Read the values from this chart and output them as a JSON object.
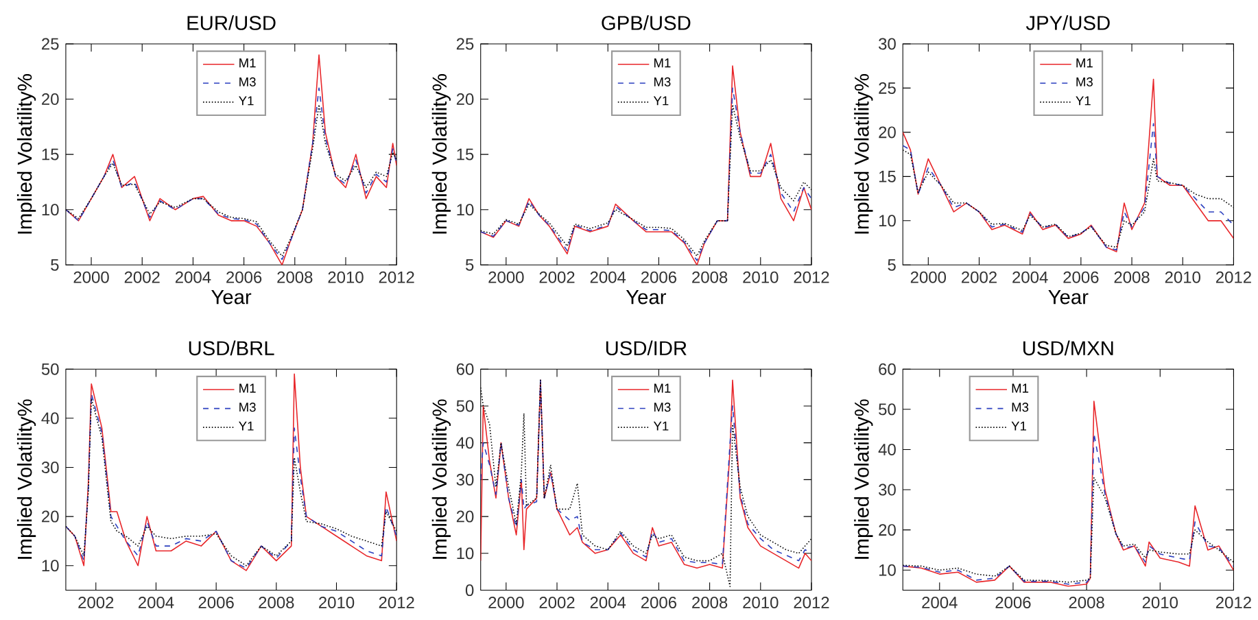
{
  "chart_data": [
    {
      "type": "line",
      "title": "EUR/USD",
      "xlabel": "Year",
      "ylabel": "Implied Volatility%",
      "legend": "top",
      "xlim": [
        1999,
        2012
      ],
      "ylim": [
        5,
        25
      ],
      "xticks": [
        2000,
        2002,
        2004,
        2006,
        2008,
        2010,
        2012
      ],
      "yticks": [
        5,
        10,
        15,
        20,
        25
      ],
      "x": [
        1999,
        1999.5,
        2000,
        2000.5,
        2000.85,
        2001.2,
        2001.7,
        2002.3,
        2002.7,
        2003.3,
        2004,
        2004.4,
        2005,
        2005.5,
        2006,
        2006.5,
        2007,
        2007.5,
        2007.8,
        2008.3,
        2008.7,
        2008.95,
        2009.2,
        2009.6,
        2010,
        2010.4,
        2010.8,
        2011.2,
        2011.6,
        2011.85,
        2012
      ],
      "series": [
        {
          "name": "M1",
          "color": "#e8262a",
          "line_style": "solid",
          "values": [
            10,
            9,
            11,
            13,
            15,
            12,
            13,
            9,
            11,
            10,
            11,
            11.2,
            9.5,
            9,
            9,
            8.5,
            7,
            5,
            7,
            10,
            16,
            24,
            17,
            13,
            12,
            15,
            11,
            13,
            12,
            16,
            14
          ]
        },
        {
          "name": "M3",
          "color": "#2b3fbf",
          "line_style": "dashed",
          "values": [
            10,
            9,
            11,
            13,
            14.5,
            12,
            12.5,
            9.3,
            10.8,
            10,
            11,
            11,
            9.6,
            9.2,
            9.1,
            8.7,
            7,
            5.5,
            7,
            10,
            16,
            21,
            16.5,
            13,
            12.3,
            14.5,
            11.5,
            13.2,
            12.5,
            15.5,
            14.2
          ]
        },
        {
          "name": "Y1",
          "color": "#000000",
          "line_style": "dotted",
          "values": [
            10,
            9.2,
            11,
            13,
            14.2,
            12.2,
            12.3,
            9.6,
            10.7,
            10.2,
            11,
            11,
            9.8,
            9.3,
            9.2,
            8.9,
            7.2,
            5.8,
            7.2,
            10,
            15.5,
            19.5,
            16,
            13.2,
            12.6,
            14,
            12,
            13.4,
            13,
            15.2,
            14.5
          ]
        }
      ]
    },
    {
      "type": "line",
      "title": "GPB/USD",
      "xlabel": "Year",
      "ylabel": "Implied Volatility%",
      "legend": "top",
      "xlim": [
        1999,
        2012
      ],
      "ylim": [
        5,
        25
      ],
      "xticks": [
        2000,
        2002,
        2004,
        2006,
        2008,
        2010,
        2012
      ],
      "yticks": [
        5,
        10,
        15,
        20,
        25
      ],
      "x": [
        1999,
        1999.5,
        2000,
        2000.5,
        2000.9,
        2001.3,
        2001.7,
        2002.4,
        2002.7,
        2003.3,
        2004,
        2004.3,
        2005,
        2005.5,
        2006,
        2006.5,
        2007,
        2007.5,
        2007.8,
        2008.3,
        2008.7,
        2008.9,
        2009.2,
        2009.6,
        2010,
        2010.4,
        2010.8,
        2011.3,
        2011.7,
        2012
      ],
      "series": [
        {
          "name": "M1",
          "color": "#e8262a",
          "line_style": "solid",
          "values": [
            8,
            7.5,
            9,
            8.5,
            11,
            9.5,
            8.5,
            6,
            8.5,
            8,
            8.5,
            10.5,
            9,
            8,
            8,
            8,
            7,
            5,
            7,
            9,
            9,
            23,
            17,
            13,
            13,
            16,
            11,
            9,
            12,
            10
          ]
        },
        {
          "name": "M3",
          "color": "#2b3fbf",
          "line_style": "dashed",
          "values": [
            8,
            7.6,
            9,
            8.6,
            10.8,
            9.5,
            8.6,
            6.3,
            8.6,
            8.1,
            8.6,
            10.3,
            9,
            8.2,
            8.2,
            8.1,
            7.1,
            5.4,
            7,
            9,
            9,
            21,
            17,
            13.3,
            13.3,
            15,
            11.5,
            9.8,
            12,
            11
          ]
        },
        {
          "name": "Y1",
          "color": "#000000",
          "line_style": "dotted",
          "values": [
            8.1,
            7.8,
            9.1,
            8.7,
            10.5,
            9.6,
            8.8,
            6.7,
            8.7,
            8.3,
            8.8,
            10,
            9.1,
            8.4,
            8.4,
            8.3,
            7.3,
            5.8,
            7.2,
            9,
            9,
            19.5,
            16.5,
            13.5,
            13.5,
            14.5,
            12,
            10.8,
            12.5,
            11.8
          ]
        }
      ]
    },
    {
      "type": "line",
      "title": "JPY/USD",
      "xlabel": "Year",
      "ylabel": "Implied Volatility%",
      "legend": "top",
      "xlim": [
        1999,
        2012
      ],
      "ylim": [
        5,
        30
      ],
      "xticks": [
        2000,
        2002,
        2004,
        2006,
        2008,
        2010,
        2012
      ],
      "yticks": [
        5,
        10,
        15,
        20,
        25,
        30
      ],
      "x": [
        1999,
        1999.3,
        1999.6,
        2000,
        2000.5,
        2001,
        2001.5,
        2002,
        2002.5,
        2003,
        2003.7,
        2004,
        2004.5,
        2005,
        2005.5,
        2006,
        2006.4,
        2007,
        2007.4,
        2007.7,
        2008,
        2008.5,
        2008.85,
        2009,
        2009.5,
        2010,
        2010.5,
        2011,
        2011.5,
        2012
      ],
      "series": [
        {
          "name": "M1",
          "color": "#e8262a",
          "line_style": "solid",
          "values": [
            20,
            18,
            13,
            17,
            14,
            11,
            12,
            11,
            9,
            9.5,
            8.5,
            11,
            9,
            9.5,
            8,
            8.5,
            9.5,
            7,
            6.5,
            12,
            9,
            12,
            26,
            15,
            14,
            14,
            12,
            10,
            10,
            8
          ]
        },
        {
          "name": "M3",
          "color": "#2b3fbf",
          "line_style": "dashed",
          "values": [
            18.5,
            18,
            13,
            16,
            14,
            11.5,
            12,
            11,
            9.3,
            9.6,
            8.7,
            10.8,
            9.2,
            9.6,
            8.1,
            8.6,
            9.4,
            7,
            6.7,
            11,
            9.3,
            11.5,
            21,
            15,
            14.2,
            14,
            12.5,
            11,
            11,
            9.5
          ]
        },
        {
          "name": "Y1",
          "color": "#000000",
          "line_style": "dotted",
          "values": [
            18,
            17.5,
            13.2,
            15.5,
            14,
            12,
            12,
            11,
            9.6,
            9.7,
            8.9,
            10.6,
            9.3,
            9.6,
            8.2,
            8.6,
            9.3,
            7.2,
            7,
            10,
            9.5,
            11,
            17,
            14.5,
            14.3,
            14,
            13,
            12.5,
            12.5,
            11.5
          ]
        }
      ]
    },
    {
      "type": "line",
      "title": "USD/BRL",
      "ylabel": "Implied Volatility%",
      "legend": "top",
      "xlim": [
        2001,
        2012
      ],
      "ylim": [
        5,
        50
      ],
      "xticks": [
        2002,
        2004,
        2006,
        2008,
        2010,
        2012
      ],
      "yticks": [
        10,
        20,
        30,
        40,
        50
      ],
      "x": [
        2001,
        2001.3,
        2001.6,
        2001.75,
        2001.85,
        2002.2,
        2002.5,
        2002.7,
        2003,
        2003.4,
        2003.7,
        2004,
        2004.5,
        2005,
        2005.5,
        2006,
        2006.5,
        2007,
        2007.5,
        2008,
        2008.5,
        2008.6,
        2008.8,
        2009,
        2009.5,
        2010,
        2010.5,
        2011,
        2011.5,
        2011.65,
        2012
      ],
      "series": [
        {
          "name": "M1",
          "color": "#e8262a",
          "line_style": "solid",
          "values": [
            18,
            16,
            10,
            27,
            47,
            38,
            21,
            21,
            15,
            10,
            20,
            13,
            13,
            15,
            14,
            17,
            11,
            9,
            14,
            11,
            14,
            49,
            30,
            20,
            18,
            16,
            14,
            12,
            11,
            25,
            15
          ]
        },
        {
          "name": "M3",
          "color": "#2b3fbf",
          "line_style": "dashed",
          "values": [
            18,
            16,
            11,
            26,
            45,
            37,
            20,
            18,
            15,
            12,
            19,
            14,
            14,
            15.5,
            15,
            17,
            11,
            9.5,
            14,
            11.5,
            15,
            38,
            28,
            20,
            18,
            17,
            15,
            13,
            12,
            22,
            16
          ]
        },
        {
          "name": "Y1",
          "color": "#000000",
          "line_style": "dotted",
          "values": [
            18,
            16,
            12,
            25,
            44,
            36,
            19,
            17,
            16,
            14,
            18,
            16,
            15.5,
            16,
            16,
            16.5,
            12,
            10,
            14,
            12,
            15,
            32,
            25,
            19,
            18.5,
            17.5,
            16,
            15,
            14,
            21,
            17
          ]
        }
      ]
    },
    {
      "type": "line",
      "title": "USD/IDR",
      "ylabel": "Implied Volatility%",
      "legend": "top",
      "xlim": [
        1999,
        2012
      ],
      "ylim": [
        0,
        60
      ],
      "xticks": [
        2000,
        2002,
        2004,
        2006,
        2008,
        2010,
        2012
      ],
      "yticks": [
        0,
        10,
        20,
        30,
        40,
        50,
        60
      ],
      "x": [
        1999,
        1999.1,
        1999.35,
        1999.6,
        1999.8,
        2000.1,
        2000.4,
        2000.6,
        2000.7,
        2000.8,
        2001.2,
        2001.35,
        2001.5,
        2001.75,
        2002,
        2002.5,
        2002.8,
        2003,
        2003.5,
        2004,
        2004.5,
        2005,
        2005.5,
        2005.75,
        2006,
        2006.5,
        2007,
        2007.5,
        2008,
        2008.5,
        2008.8,
        2008.9,
        2009.2,
        2009.5,
        2010,
        2010.5,
        2011,
        2011.5,
        2011.75,
        2012
      ],
      "series": [
        {
          "name": "M1",
          "color": "#e8262a",
          "line_style": "solid",
          "values": [
            8,
            50,
            35,
            25,
            40,
            25,
            15,
            30,
            11,
            22,
            25,
            57,
            25,
            32,
            22,
            15,
            17,
            13,
            10,
            11,
            15,
            10,
            8,
            17,
            12,
            13,
            7,
            6,
            7,
            6,
            38,
            57,
            25,
            17,
            12,
            10,
            8,
            6,
            10,
            8
          ]
        },
        {
          "name": "M3",
          "color": "#2b3fbf",
          "line_style": "dashed",
          "values": [
            30,
            40,
            34,
            26,
            40,
            25,
            17,
            30,
            22,
            23,
            24,
            57,
            25,
            32,
            22,
            19,
            20,
            13,
            11,
            11,
            15.5,
            11,
            9,
            16,
            13,
            14,
            8,
            7.5,
            7.5,
            7,
            40,
            50,
            26,
            18,
            14,
            11,
            9.5,
            8,
            11,
            10
          ]
        },
        {
          "name": "Y1",
          "color": "#000000",
          "line_style": "dotted",
          "values": [
            55,
            50,
            45,
            28,
            40,
            28,
            18,
            32,
            48,
            23,
            25,
            57,
            25,
            34,
            22,
            22,
            29,
            15,
            12,
            11,
            16,
            12,
            10,
            15,
            14,
            15,
            9,
            8,
            8,
            10,
            1,
            45,
            28,
            20,
            15,
            13,
            11,
            10,
            12,
            14
          ]
        }
      ]
    },
    {
      "type": "line",
      "title": "USD/MXN",
      "ylabel": "Implied Volatility%",
      "legend": "top left",
      "xlim": [
        2003,
        2012
      ],
      "ylim": [
        5,
        60
      ],
      "xticks": [
        2004,
        2006,
        2008,
        2010,
        2012
      ],
      "yticks": [
        10,
        20,
        30,
        40,
        50,
        60
      ],
      "x": [
        2003,
        2003.5,
        2004,
        2004.5,
        2005,
        2005.5,
        2005.9,
        2006.3,
        2007,
        2007.5,
        2008,
        2008.1,
        2008.2,
        2008.5,
        2008.8,
        2009,
        2009.3,
        2009.6,
        2009.7,
        2010,
        2010.5,
        2010.8,
        2010.95,
        2011.3,
        2011.6,
        2012
      ],
      "series": [
        {
          "name": "M1",
          "color": "#e8262a",
          "line_style": "solid",
          "values": [
            11,
            10.5,
            9,
            9.5,
            7,
            7.5,
            11,
            7,
            7,
            6,
            6.5,
            8,
            52,
            30,
            19,
            15,
            16,
            11,
            17,
            13,
            12,
            11,
            26,
            15,
            16,
            10
          ]
        },
        {
          "name": "M3",
          "color": "#2b3fbf",
          "line_style": "dashed",
          "values": [
            11,
            10.7,
            9.5,
            10,
            7.5,
            8,
            11,
            7.2,
            7.2,
            6.5,
            7,
            8,
            44,
            29,
            19,
            15.5,
            16,
            12,
            16,
            14,
            13,
            12.5,
            22,
            16,
            15.5,
            11
          ]
        },
        {
          "name": "Y1",
          "color": "#000000",
          "line_style": "dotted",
          "values": [
            11.2,
            11,
            10,
            10.5,
            9,
            8.5,
            11,
            7.5,
            7.4,
            7,
            7.5,
            8,
            33,
            28,
            19,
            16,
            16.5,
            13,
            15,
            14.5,
            14,
            14,
            20,
            17,
            15,
            12
          ]
        }
      ]
    }
  ]
}
